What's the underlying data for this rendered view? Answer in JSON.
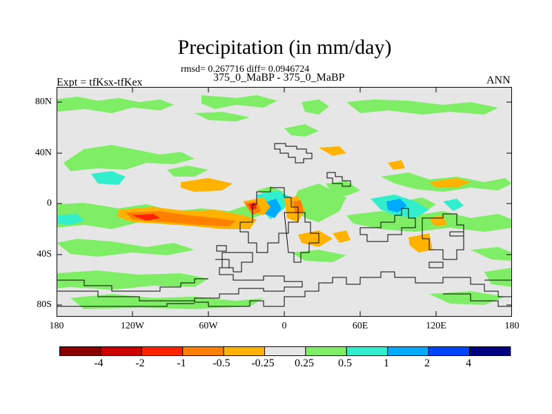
{
  "title": "Precipitation (in mm/day)",
  "stats": "rmsd= 0.267716 diff= 0.0946724",
  "subtitle": "375_0_MaBP - 375_0_MaBP",
  "experiment": "Expt = tfKsx-tfKex",
  "season": "ANN",
  "map": {
    "lat_labels": [
      "80N",
      "40N",
      "0",
      "40S",
      "80S"
    ],
    "lon_labels": [
      "180",
      "120W",
      "60W",
      "0",
      "60E",
      "120E",
      "180"
    ],
    "background_color": "#e6e6e6"
  },
  "colorbar": {
    "labels": [
      "-4",
      "-2",
      "-1",
      "-0.5",
      "-0.25",
      "0.25",
      "0.5",
      "1",
      "2",
      "4"
    ],
    "colors": [
      "#8b0000",
      "#cc0000",
      "#ff2200",
      "#ff7f00",
      "#ffb300",
      "#e6e6e6",
      "#7fee66",
      "#33eecc",
      "#00aaff",
      "#0044ff",
      "#000080"
    ]
  }
}
